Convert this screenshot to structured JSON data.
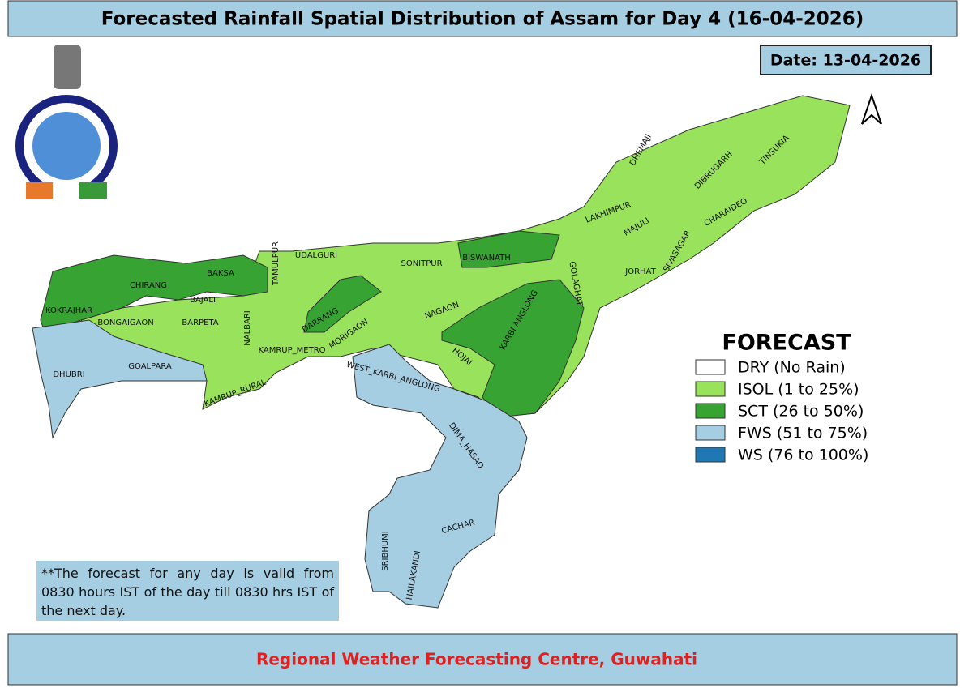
{
  "header": {
    "title": "Forecasted Rainfall Spatial Distribution of Assam for Day 4 (16-04-2026)",
    "date": "Date: 13-04-2026"
  },
  "districts": [
    "KOKRAJHAR",
    "CHIRANG",
    "BAKSA",
    "BAJALI",
    "BONGAIGAON",
    "BARPETA",
    "NALBARI",
    "TAMULPUR",
    "UDALGURI",
    "DARRANG",
    "SONITPUR",
    "BISWANATH",
    "KAMRUP_METRO",
    "MORIGAON",
    "NAGAON",
    "HOJAI",
    "KARBI ANGLONG",
    "GOLAGHAT",
    "JORHAT",
    "SIVASAGAR",
    "MAJULI",
    "LAKHIMPUR",
    "DHEMAJI",
    "DIBRUGARH",
    "TINSUKIA",
    "CHARAIDEO",
    "DHUBRI",
    "GOALPARA",
    "KAMRUP_RURAL",
    "WEST_KARBI_ANGLONG",
    "DIMA_HASAO",
    "CACHAR",
    "SRIBHUMI",
    "HAILAKANDI"
  ],
  "legend": {
    "title": "FORECAST",
    "items": [
      {
        "label": "DRY (No Rain)",
        "color": "#ffffff"
      },
      {
        "label": "ISOL (1 to 25%)",
        "color": "#98e25c"
      },
      {
        "label": "SCT (26 to 50%)",
        "color": "#37a332"
      },
      {
        "label": "FWS (51 to 75%)",
        "color": "#a6cee3"
      },
      {
        "label": "WS (76 to 100%)",
        "color": "#1f78b4"
      }
    ]
  },
  "note": "**The forecast for any day is valid from 0830 hours IST of the day till 0830 hrs IST of the next day.",
  "footer": "Regional Weather Forecasting Centre, Guwahati"
}
